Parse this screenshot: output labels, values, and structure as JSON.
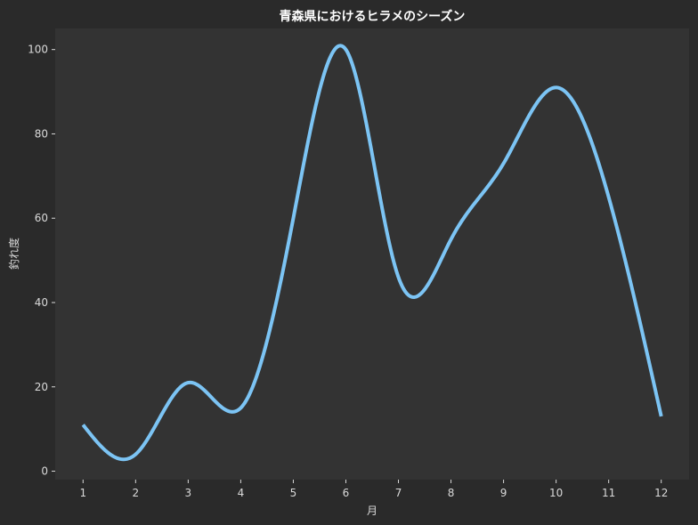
{
  "chart_data": {
    "type": "line",
    "title": "青森県におけるヒラメのシーズン",
    "xlabel": "月",
    "ylabel": "釣れ度",
    "x": [
      1,
      2,
      3,
      4,
      5,
      6,
      7,
      8,
      9,
      10,
      11,
      12
    ],
    "x_ticks": [
      "1",
      "2",
      "3",
      "4",
      "5",
      "6",
      "7",
      "8",
      "9",
      "10",
      "11",
      "12"
    ],
    "y_ticks": [
      "0",
      "20",
      "40",
      "60",
      "80",
      "100"
    ],
    "series": [
      {
        "values": [
          11,
          4,
          21,
          15,
          60,
          100,
          46,
          55,
          73,
          91,
          65,
          13
        ],
        "color": "#7cc4f4",
        "smooth": true
      }
    ],
    "xlim": [
      0.47,
      12.53
    ],
    "ylim": [
      -2,
      105
    ],
    "grid": false,
    "colors": {
      "background": "#2a2a2a",
      "plot_area": "#333333",
      "text": "#d9d9d9",
      "title": "#ffffff"
    }
  }
}
